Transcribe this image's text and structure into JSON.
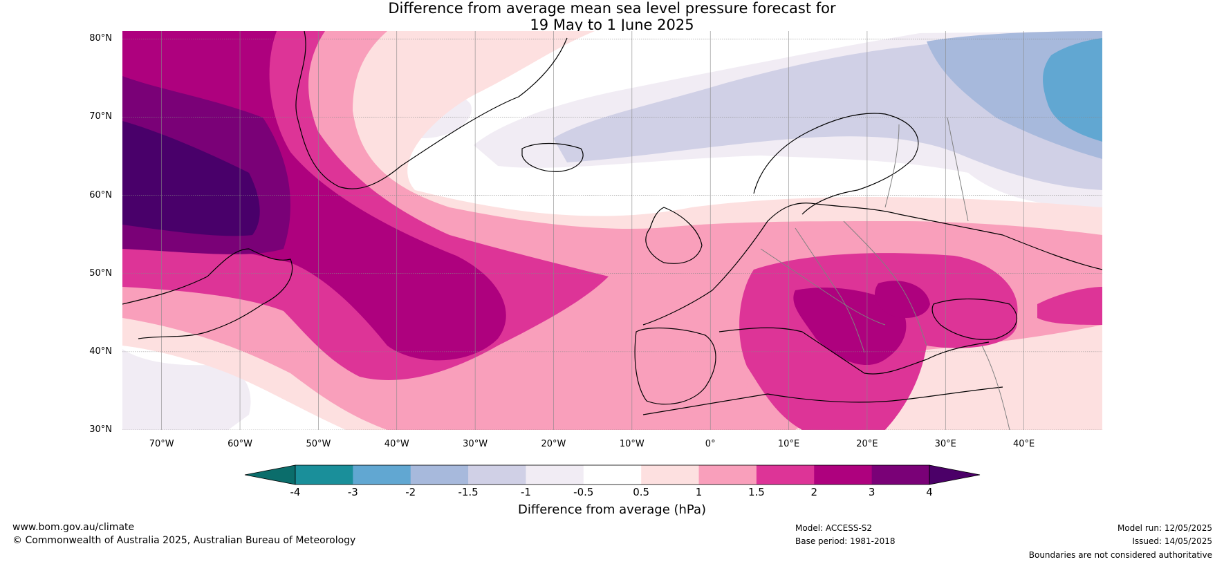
{
  "title": {
    "line1": "Difference from average mean sea level pressure forecast for",
    "line2": "19 May to 1 June 2025"
  },
  "map": {
    "projection": "equirectangular",
    "lon_range": [
      -75,
      50
    ],
    "lat_range": [
      30,
      81
    ],
    "lat_labels": [
      "80°N",
      "70°N",
      "60°N",
      "50°N",
      "40°N",
      "30°N"
    ],
    "lat_values": [
      80,
      70,
      60,
      50,
      40,
      30
    ],
    "lon_labels": [
      "70°W",
      "60°W",
      "50°W",
      "40°W",
      "30°W",
      "20°W",
      "10°W",
      "0°",
      "10°E",
      "20°E",
      "30°E",
      "40°E"
    ],
    "lon_values": [
      -70,
      -60,
      -50,
      -40,
      -30,
      -20,
      -10,
      0,
      10,
      20,
      30,
      40
    ],
    "coastline_color": "#000000",
    "border_color": "#808080",
    "gridline_color": "#888888"
  },
  "colorbar": {
    "title": "Difference from average (hPa)",
    "ticks": [
      "-4",
      "-3",
      "-2",
      "-1.5",
      "-1",
      "-0.5",
      "0.5",
      "1",
      "1.5",
      "2",
      "3",
      "4"
    ],
    "under_color": "#0b6d6b",
    "over_color": "#4b0068",
    "colors": [
      "#1a8f9a",
      "#61a7d2",
      "#a7b9dc",
      "#d0d0e6",
      "#f1ecf4",
      "#ffffff",
      "#fde0e0",
      "#f99fbb",
      "#dd3497",
      "#ae017e",
      "#7a0177",
      "#49006a"
    ]
  },
  "footer": {
    "website": "www.bom.gov.au/climate",
    "copyright": "© Commonwealth of Australia 2025, Australian Bureau of Meteorology",
    "model": "Model: ACCESS-S2",
    "base_period": "Base period: 1981-2018",
    "model_run": "Model run: 12/05/2025",
    "issued": "Issued: 14/05/2025",
    "disclaimer": "Boundaries are not considered authoritative"
  }
}
